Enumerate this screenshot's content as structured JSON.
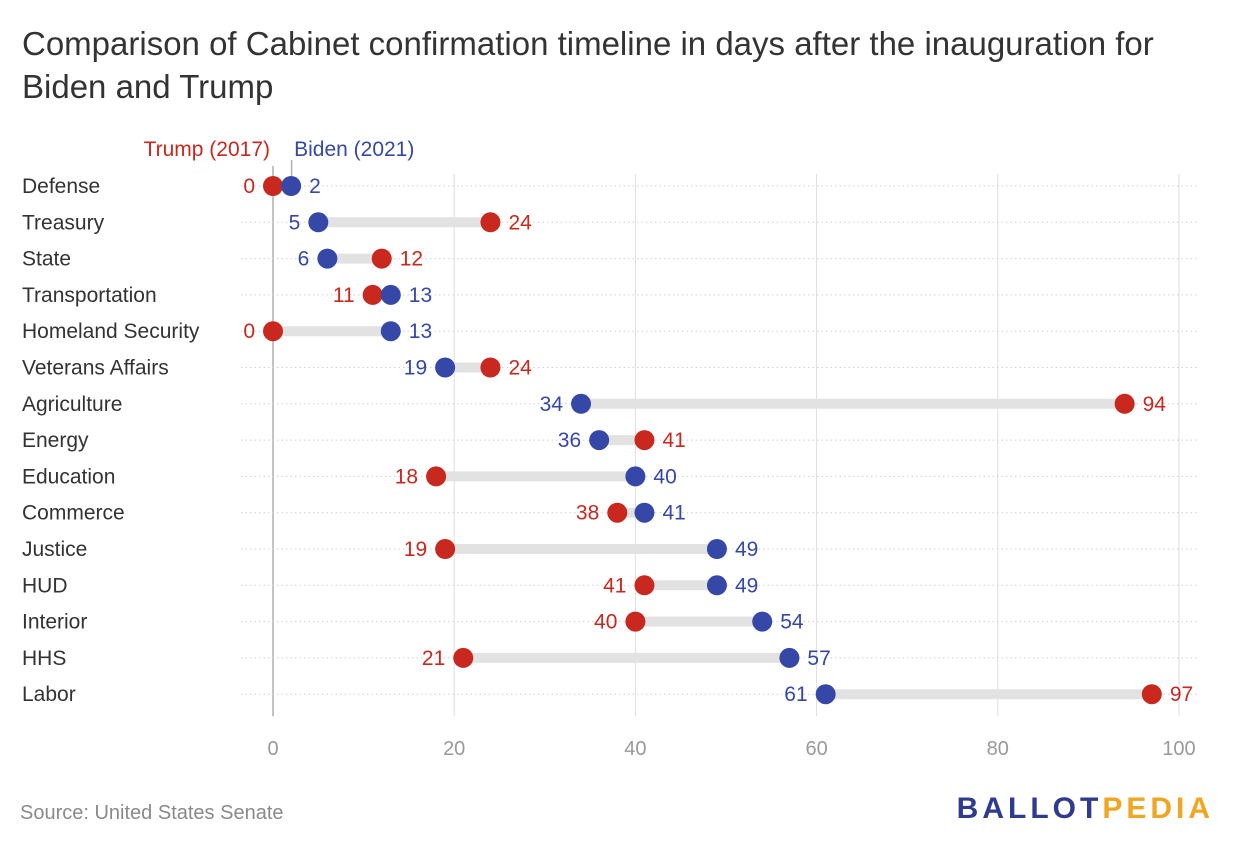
{
  "title": "Comparison of Cabinet confirmation timeline in days after the inauguration for Biden and Trump",
  "source": "Source: United States Senate",
  "brand": {
    "part1": "BALLOT",
    "part2": "PEDIA"
  },
  "colors": {
    "trump": "#c8281e",
    "biden": "#3548a8",
    "connector": "#e2e2e2",
    "grid": "#dedede",
    "brand_blue": "#2f3b8f",
    "brand_gold": "#f0a623"
  },
  "chart_data": {
    "type": "dot-plot",
    "title": "Comparison of Cabinet confirmation timeline in days after the inauguration for Biden and Trump",
    "xlim": [
      0,
      100
    ],
    "x_ticks": [
      0,
      20,
      40,
      60,
      80,
      100
    ],
    "grid": true,
    "legend_position": "top",
    "categories": [
      "Defense",
      "Treasury",
      "State",
      "Transportation",
      "Homeland Security",
      "Veterans Affairs",
      "Agriculture",
      "Energy",
      "Education",
      "Commerce",
      "Justice",
      "HUD",
      "Interior",
      "HHS",
      "Labor"
    ],
    "series": [
      {
        "name": "Trump (2017)",
        "color": "#c8281e",
        "values": [
          0,
          24,
          12,
          11,
          0,
          24,
          94,
          41,
          18,
          38,
          19,
          41,
          40,
          21,
          97
        ]
      },
      {
        "name": "Biden (2021)",
        "color": "#3548a8",
        "values": [
          2,
          5,
          6,
          13,
          13,
          19,
          34,
          36,
          40,
          41,
          49,
          49,
          54,
          57,
          61
        ]
      }
    ]
  }
}
